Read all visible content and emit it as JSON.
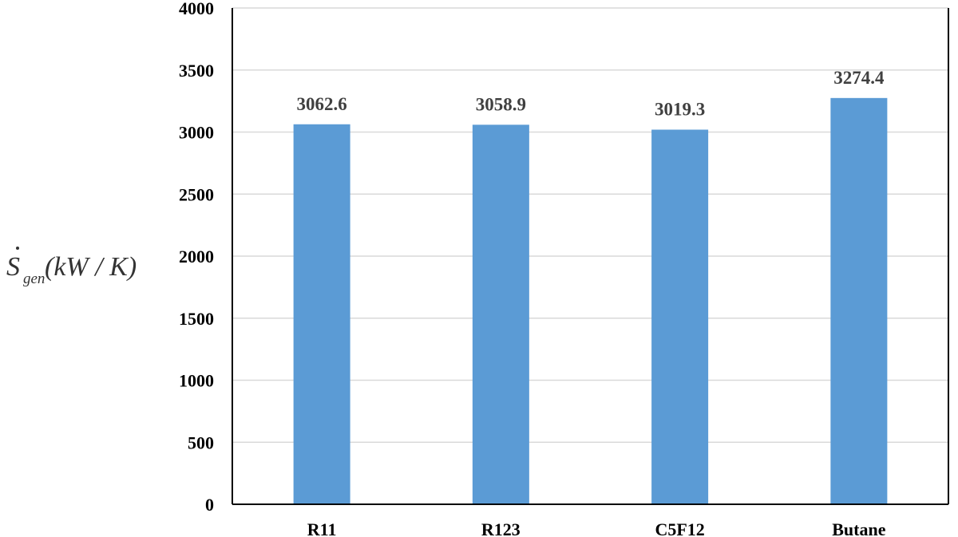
{
  "chart_data": {
    "type": "bar",
    "categories": [
      "R11",
      "R123",
      "C5F12",
      "Butane"
    ],
    "values": [
      3062.6,
      3058.9,
      3019.3,
      3274.4
    ],
    "data_labels": [
      "3062.6",
      "3058.9",
      "3019.3",
      "3274.4"
    ],
    "title": "",
    "xlabel": "",
    "ylabel": {
      "symbol": "S",
      "subscript": "gen",
      "unit": "(kW / K)"
    },
    "ylim": [
      0,
      4000
    ],
    "yticks": [
      0,
      500,
      1000,
      1500,
      2000,
      2500,
      3000,
      3500,
      4000
    ],
    "grid": true,
    "legend": "none",
    "bar_color": "#5b9bd5",
    "grid_color": "#d9d9d9"
  }
}
